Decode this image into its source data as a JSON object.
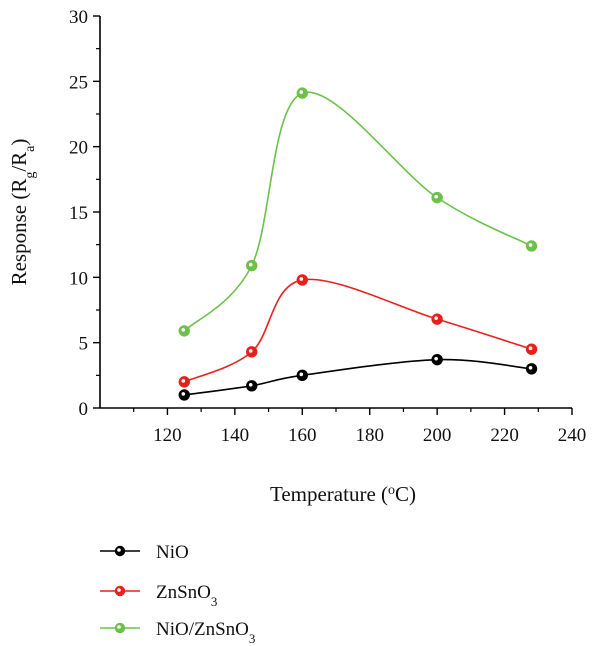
{
  "chart_data": {
    "type": "line",
    "xlabel": "Temperature (°C)",
    "ylabel": "Response (Rg/Ra)",
    "xlim": [
      100,
      240
    ],
    "ylim": [
      0,
      30
    ],
    "x_ticks": [
      120,
      140,
      160,
      180,
      200,
      220,
      240
    ],
    "y_ticks": [
      0,
      5,
      10,
      15,
      20,
      25,
      30
    ],
    "grid": false,
    "legend_position": "bottom-left",
    "series": [
      {
        "name": "NiO",
        "color": "#000000",
        "x": [
          125,
          145,
          160,
          200,
          228
        ],
        "y": [
          1.0,
          1.7,
          2.5,
          3.7,
          3.0
        ]
      },
      {
        "name": "ZnSnO3",
        "color": "#e8201c",
        "x": [
          125,
          145,
          160,
          200,
          228
        ],
        "y": [
          2.0,
          4.3,
          9.8,
          6.8,
          4.5
        ]
      },
      {
        "name": "NiO/ZnSnO3",
        "color": "#6cc14a",
        "x": [
          125,
          145,
          160,
          200,
          228
        ],
        "y": [
          5.9,
          10.9,
          24.1,
          16.1,
          12.4
        ]
      }
    ]
  }
}
